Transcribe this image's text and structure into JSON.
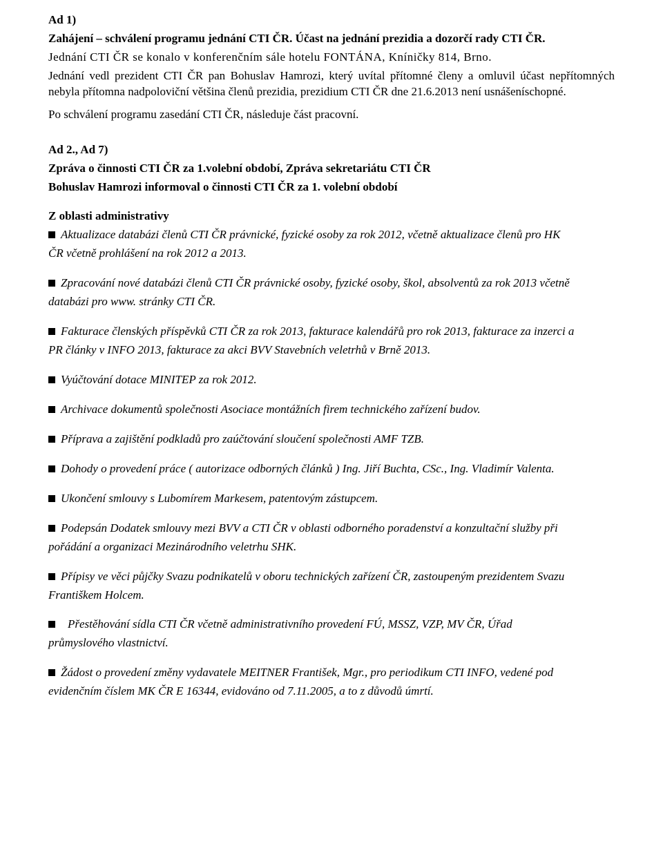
{
  "colors": {
    "text": "#000000",
    "background": "#ffffff",
    "bullet": "#000000"
  },
  "typography": {
    "family": "Palatino Linotype / Book Antiqua",
    "size_pt": 12,
    "line_height": 1.35
  },
  "header": {
    "ad1": "Ad 1)",
    "title": "Zahájení – schválení programu jednání CTI ČR. Účast na jednání prezidia a dozorčí rady CTI ČR.",
    "venue": "Jednání CTI ČR se konalo v konferenčním sále hotelu FONTÁNA, Kníničky 814, Brno.",
    "intro": "Jednání vedl prezident CTI ČR pan Bohuslav Hamrozi, který uvítal přítomné členy a omluvil účast nepřítomných nebyla přítomna nadpoloviční většina členů prezidia, prezidium CTI ČR dne 21.6.2013 není usnášeníschopné.",
    "after": "Po schválení programu zasedání  CTI ČR, následuje část pracovní."
  },
  "section2": {
    "ad": "Ad 2., Ad 7)",
    "line1": "Zpráva o činnosti   CTI ČR za 1.volební období, Zpráva sekretariátu CTI ČR",
    "line2": "Bohuslav Hamrozi informoval o činnosti CTI ČR  za 1. volební období",
    "subhead": "Z oblasti administrativy"
  },
  "bullets": [
    {
      "first": " Aktualizace databázi členů CTI ČR právnické, fyzické osoby za rok 2012, včetně aktualizace členů pro   HK",
      "cont": "ČR včetně prohlášení na rok 2012 a  2013."
    },
    {
      "first": " Zpracování nové databázi členů  CTI ČR právnické osoby, fyzické osoby, škol, absolventů  za rok 2013 včetně",
      "cont": "databázi pro www. stránky CTI ČR."
    },
    {
      "first": " Fakturace členských příspěvků CTI ČR za rok 2013, fakturace kalendářů pro rok 2013,  fakturace za inzerci  a",
      "cont": "PR články v INFO 2013, fakturace za akci BVV Stavebních veletrhů v Brně 2013."
    },
    {
      "first": " Vyúčtování dotace MINITEP za rok 2012."
    },
    {
      "first": " Archivace  dokumentů  společnosti Asociace montážních firem technického  zařízení  budov."
    },
    {
      "first": " Příprava a zajištění podkladů pro zaúčtování sloučení společnosti AMF TZB."
    },
    {
      "first": " Dohody o provedení práce ( autorizace odborných článků ) Ing. Jiří Buchta, CSc., Ing. Vladimír Valenta."
    },
    {
      "first": " Ukončení smlouvy s Lubomírem Markesem, patentovým zástupcem."
    },
    {
      "first": " Podepsán Dodatek smlouvy mezi BVV a  CTI ČR  v oblasti odborného poradenství a konzultační služby při",
      "cont": "pořádání a organizaci  Mezinárodního veletrhu SHK."
    },
    {
      "first": " Přípisy ve věci půjčky Svazu podnikatelů v oboru technických zařízení ČR, zastoupeným  prezidentem Svazu",
      "cont": "Františkem Holcem."
    },
    {
      "first": " Přestěhování sídla CTI ČR  včetně administrativního provedení FÚ, MSSZ, VZP, MV ČR, Úřad",
      "cont": "průmyslového vlastnictví.",
      "leading_gap": true
    },
    {
      "first": " Žádost o provedení změny  vydavatele MEITNER František, Mgr.,  pro periodikum  CTI INFO,  vedené pod",
      "cont": "evidenčním číslem  MK ČR E 16344, evidováno od  7.11.2005, a to z důvodů úmrtí."
    }
  ]
}
